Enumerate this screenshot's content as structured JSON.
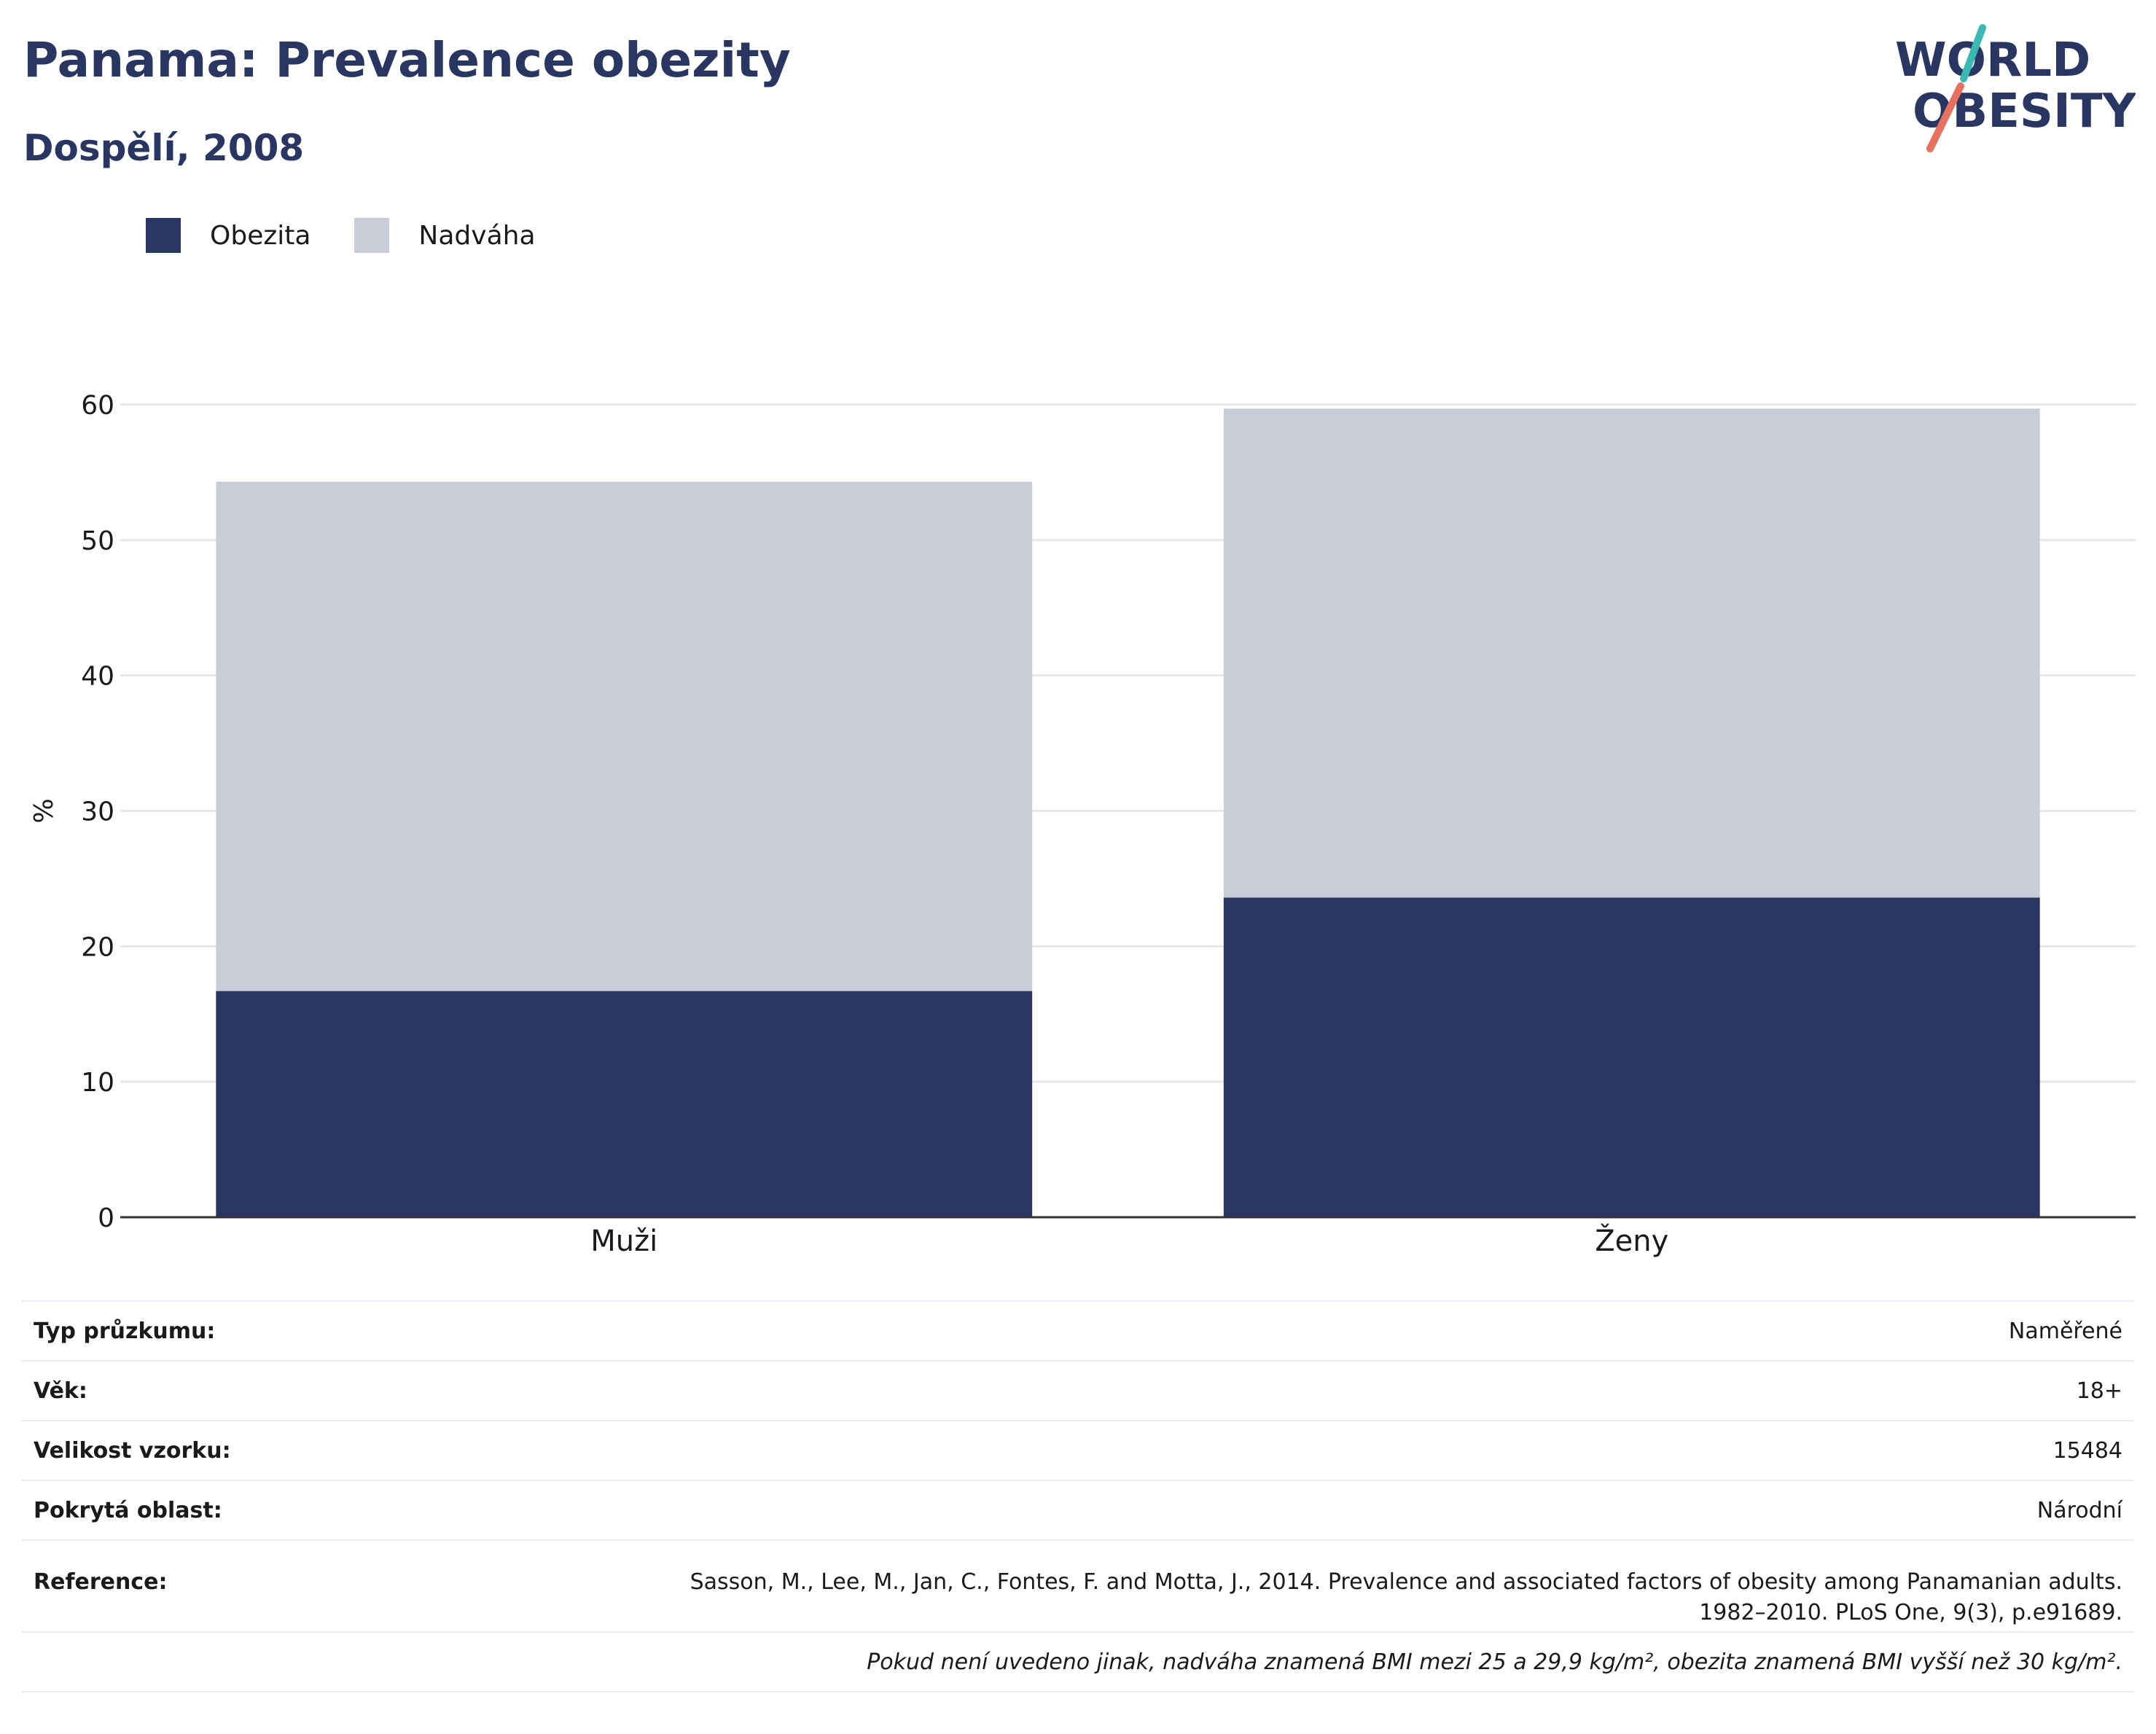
{
  "header": {
    "title": "Panama: Prevalence obezity",
    "subtitle": "Dospělí, 2008"
  },
  "logo": {
    "line1": "WORLD",
    "line2": "OBESITY",
    "accent_colors": [
      "#3cb8b3",
      "#e8705f"
    ]
  },
  "legend": {
    "items": [
      {
        "label": "Obezita",
        "color": "#2a3662"
      },
      {
        "label": "Nadváha",
        "color": "#cacdd8"
      }
    ]
  },
  "chart_data": {
    "type": "bar",
    "stacked": true,
    "categories": [
      "Muži",
      "Ženy"
    ],
    "series": [
      {
        "name": "Obezita",
        "values": [
          16.7,
          23.6
        ],
        "color": "#2a3662"
      },
      {
        "name": "Nadváha",
        "values": [
          37.6,
          36.1
        ],
        "color": "#cacdd8"
      }
    ],
    "ylabel": "%",
    "xlabel": "",
    "ylim": [
      0,
      60
    ],
    "yticks": [
      0,
      10,
      20,
      30,
      40,
      50,
      60
    ],
    "grid": true,
    "legend_position": "top-left"
  },
  "info": {
    "rows": [
      {
        "key": "Typ průzkumu:",
        "value": "Naměřené"
      },
      {
        "key": "Věk:",
        "value": "18+"
      },
      {
        "key": "Velikost vzorku:",
        "value": "15484"
      },
      {
        "key": "Pokrytá oblast:",
        "value": "Národní"
      }
    ],
    "reference": {
      "key": "Reference:",
      "line1": "Sasson, M., Lee, M., Jan, C., Fontes, F. and Motta, J., 2014. Prevalence and associated factors of obesity among Panamanian adults.",
      "line2": "1982–2010. PLoS One, 9(3), p.e91689."
    },
    "note": "Pokud není uvedeno jinak, nadváha znamená BMI mezi 25 a 29,9 kg/m², obezita znamená BMI vyšší než 30 kg/m²."
  }
}
